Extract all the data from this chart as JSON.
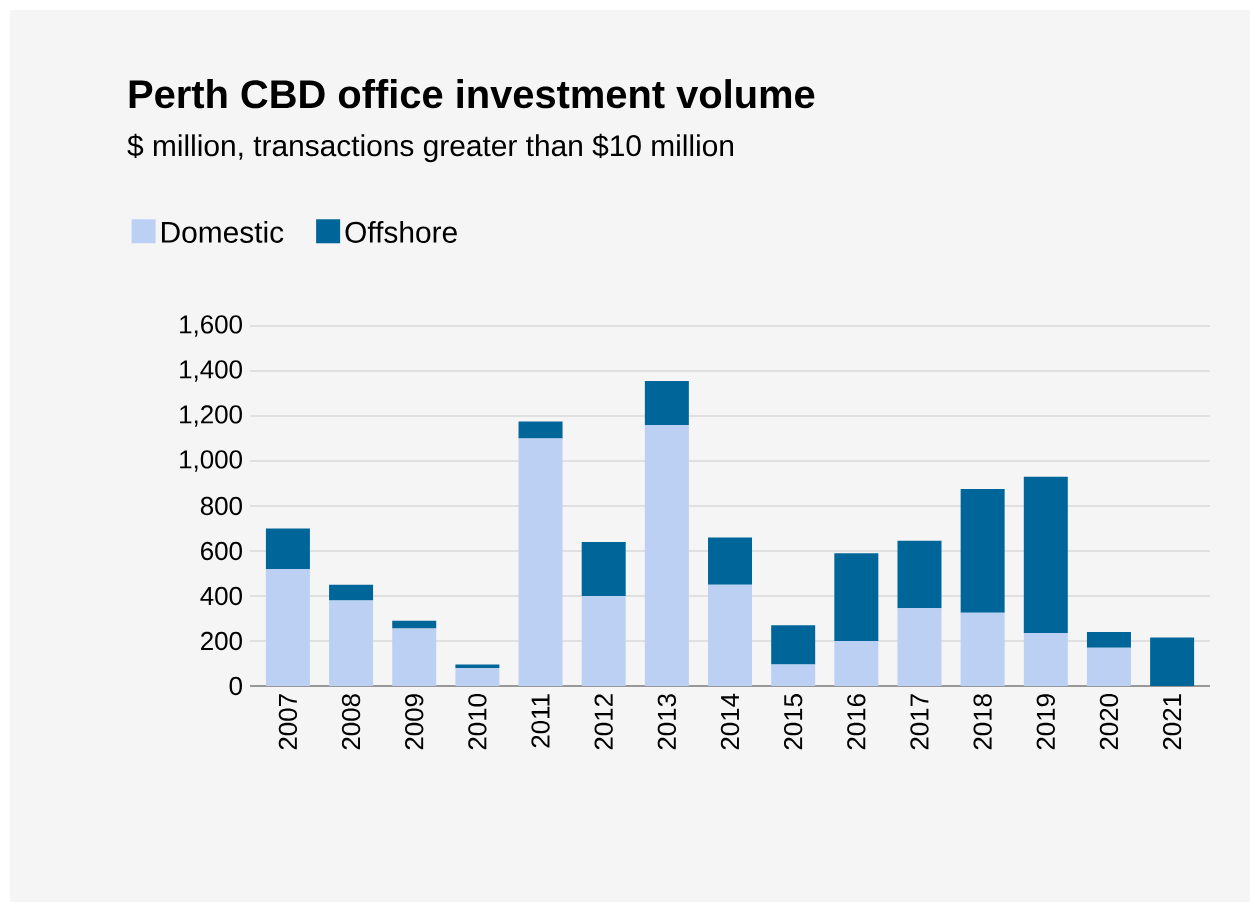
{
  "chart_data": {
    "type": "bar",
    "title": "Perth CBD office investment volume",
    "subtitle": "$ million, transactions greater than $10 million",
    "stacked": true,
    "categories": [
      "2007",
      "2008",
      "2009",
      "2010",
      "2011",
      "2012",
      "2013",
      "2014",
      "2015",
      "2016",
      "2017",
      "2018",
      "2019",
      "2020",
      "2021"
    ],
    "series": [
      {
        "name": "Domestic",
        "color": "#bcd0f3",
        "values": [
          520,
          380,
          255,
          80,
          1100,
          400,
          1160,
          450,
          95,
          200,
          345,
          325,
          235,
          170,
          0
        ]
      },
      {
        "name": "Offshore",
        "color": "#006699",
        "values": [
          180,
          70,
          35,
          15,
          75,
          240,
          195,
          210,
          175,
          390,
          300,
          550,
          695,
          70,
          215
        ]
      }
    ],
    "ylim": [
      0,
      1600
    ],
    "yticks": [
      {
        "value": 0,
        "label": "0"
      },
      {
        "value": 200,
        "label": "200"
      },
      {
        "value": 400,
        "label": "400"
      },
      {
        "value": 600,
        "label": "600"
      },
      {
        "value": 800,
        "label": "800"
      },
      {
        "value": 1000,
        "label": "1,000"
      },
      {
        "value": 1200,
        "label": "1,200"
      },
      {
        "value": 1400,
        "label": "1,400"
      },
      {
        "value": 1600,
        "label": "1,600"
      }
    ],
    "grid": "y",
    "legend": "top left"
  }
}
